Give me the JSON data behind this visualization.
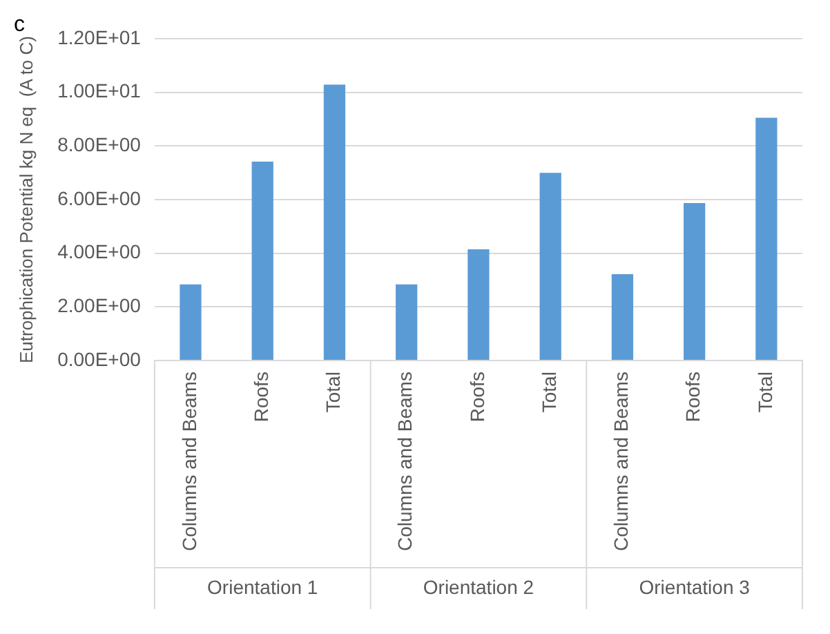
{
  "chart_data": {
    "type": "bar",
    "title": "c",
    "ylabel": "Eutrophication Potential kg N eq  (A to C)",
    "categories": [
      "Columns and Beams",
      "Roofs",
      "Total",
      "Columns and Beams",
      "Roofs",
      "Total",
      "Columns and Beams",
      "Roofs",
      "Total"
    ],
    "values": [
      2.84,
      7.42,
      10.29,
      2.84,
      4.15,
      7.0,
      3.22,
      5.87,
      9.05
    ],
    "color": "#5b9bd5",
    "ylim": [
      0,
      12
    ],
    "yticks": [
      {
        "value": 0,
        "label": "0.00E+00"
      },
      {
        "value": 2,
        "label": "2.00E+00"
      },
      {
        "value": 4,
        "label": "4.00E+00"
      },
      {
        "value": 6,
        "label": "6.00E+00"
      },
      {
        "value": 8,
        "label": "8.00E+00"
      },
      {
        "value": 10,
        "label": "1.00E+01"
      },
      {
        "value": 12,
        "label": "1.20E+01"
      }
    ],
    "grid": "y",
    "legend": false,
    "annotations": [
      "Orientation 1",
      "Orientation 2",
      "Orientation 3"
    ]
  }
}
